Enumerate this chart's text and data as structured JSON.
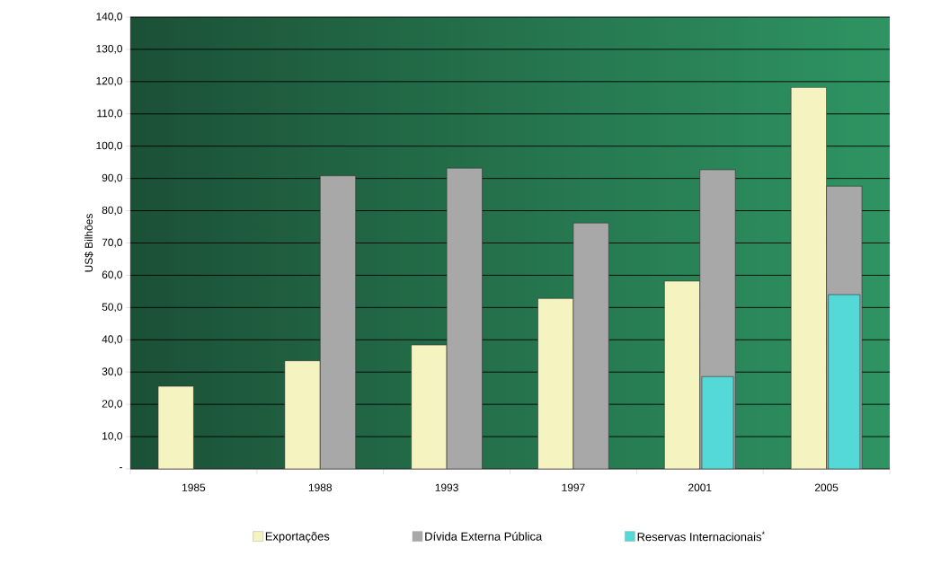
{
  "chart_data": {
    "type": "bar",
    "ylabel": "US$ Bilhões",
    "categories": [
      "1985",
      "1988",
      "1993",
      "1997",
      "2001",
      "2005"
    ],
    "series": [
      {
        "name": "Exportações",
        "color": "#f5f3c0",
        "values": [
          25.6,
          33.5,
          38.4,
          52.8,
          58.2,
          118.2
        ]
      },
      {
        "name": "Dívida Externa Pública",
        "color": "#a8a8a8",
        "values": [
          null,
          90.8,
          93.2,
          76.2,
          92.7,
          87.6
        ]
      },
      {
        "name": "Reservas Internacionais$^{*}$",
        "color": "#55d8d8",
        "values": [
          null,
          null,
          null,
          null,
          28.6,
          54.0
        ]
      }
    ],
    "ylim": [
      0,
      140
    ],
    "yticks": [
      {
        "value": 0,
        "label": "-"
      },
      {
        "value": 10,
        "label": "10,0"
      },
      {
        "value": 20,
        "label": "20,0"
      },
      {
        "value": 30,
        "label": "30,0"
      },
      {
        "value": 40,
        "label": "40,0"
      },
      {
        "value": 50,
        "label": "50,0"
      },
      {
        "value": 60,
        "label": "60,0"
      },
      {
        "value": 70,
        "label": "70,0"
      },
      {
        "value": 80,
        "label": "80,0"
      },
      {
        "value": 90,
        "label": "90,0"
      },
      {
        "value": 100,
        "label": "100,0"
      },
      {
        "value": 110,
        "label": "110,0"
      },
      {
        "value": 120,
        "label": "120,0"
      },
      {
        "value": 130,
        "label": "130,0"
      },
      {
        "value": 140,
        "label": "140,0"
      }
    ],
    "grid": "y",
    "legend": "bottom"
  }
}
